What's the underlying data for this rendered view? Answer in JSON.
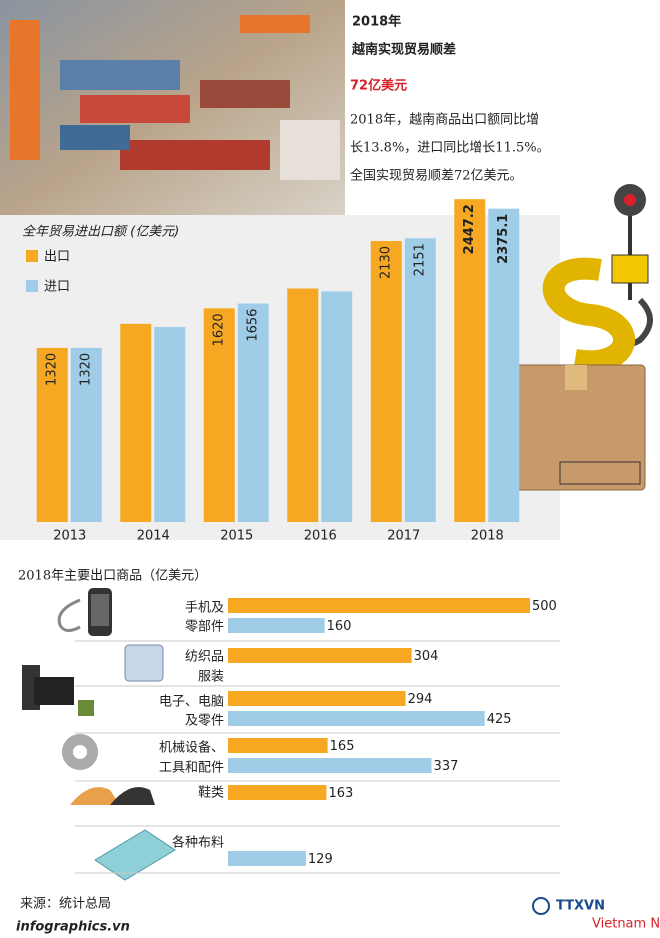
{
  "header": {
    "year": "2018年",
    "headline": "越南实现贸易顺差",
    "highlight": "72亿美元",
    "summary": [
      "2018年，越南商品出口额同比增",
      "长13.8%，进口同比增长11.5%。",
      "全国实现贸易顺差72亿美元。"
    ]
  },
  "chart_data": [
    {
      "type": "bar",
      "title": "全年贸易进出口额 (亿美元)",
      "categories": [
        "2013",
        "2014",
        "2015",
        "2016",
        "2017",
        "2018"
      ],
      "series": [
        {
          "name": "出口",
          "color": "#f7a823",
          "values": [
            1320,
            1502,
            1620,
            1770,
            2130,
            2447.2
          ],
          "value_labels": [
            "1320",
            null,
            "1620",
            null,
            "2130",
            "2447.2"
          ]
        },
        {
          "name": "进口",
          "color": "#9fcde8",
          "values": [
            1320,
            1478,
            1656,
            1748,
            2151,
            2375.1
          ],
          "value_labels": [
            "1320",
            null,
            "1656",
            null,
            "2151",
            "2375.1"
          ]
        }
      ],
      "ylim": [
        0,
        2600
      ]
    },
    {
      "type": "hbar",
      "title": "2018年主要出口商品（亿美元）",
      "categories": [
        [
          "手机及",
          "零部件"
        ],
        [
          "纺织品",
          "服装"
        ],
        [
          "电子、电脑",
          "及零件"
        ],
        [
          "机械设备、",
          "工具和配件"
        ],
        [
          "鞋类"
        ],
        [
          "各种布料"
        ]
      ],
      "series": [
        {
          "color": "#f7a823",
          "values": [
            500,
            304,
            294,
            165,
            163,
            null
          ]
        },
        {
          "color": "#9fcde8",
          "values": [
            160,
            null,
            425,
            337,
            null,
            129
          ]
        }
      ],
      "xlim": [
        0,
        500
      ]
    }
  ],
  "footer": {
    "source": "来源：统计总局",
    "site": "infographics.vn",
    "agency": "TTXVN",
    "agency_sub": "Vietnam News Agency"
  }
}
